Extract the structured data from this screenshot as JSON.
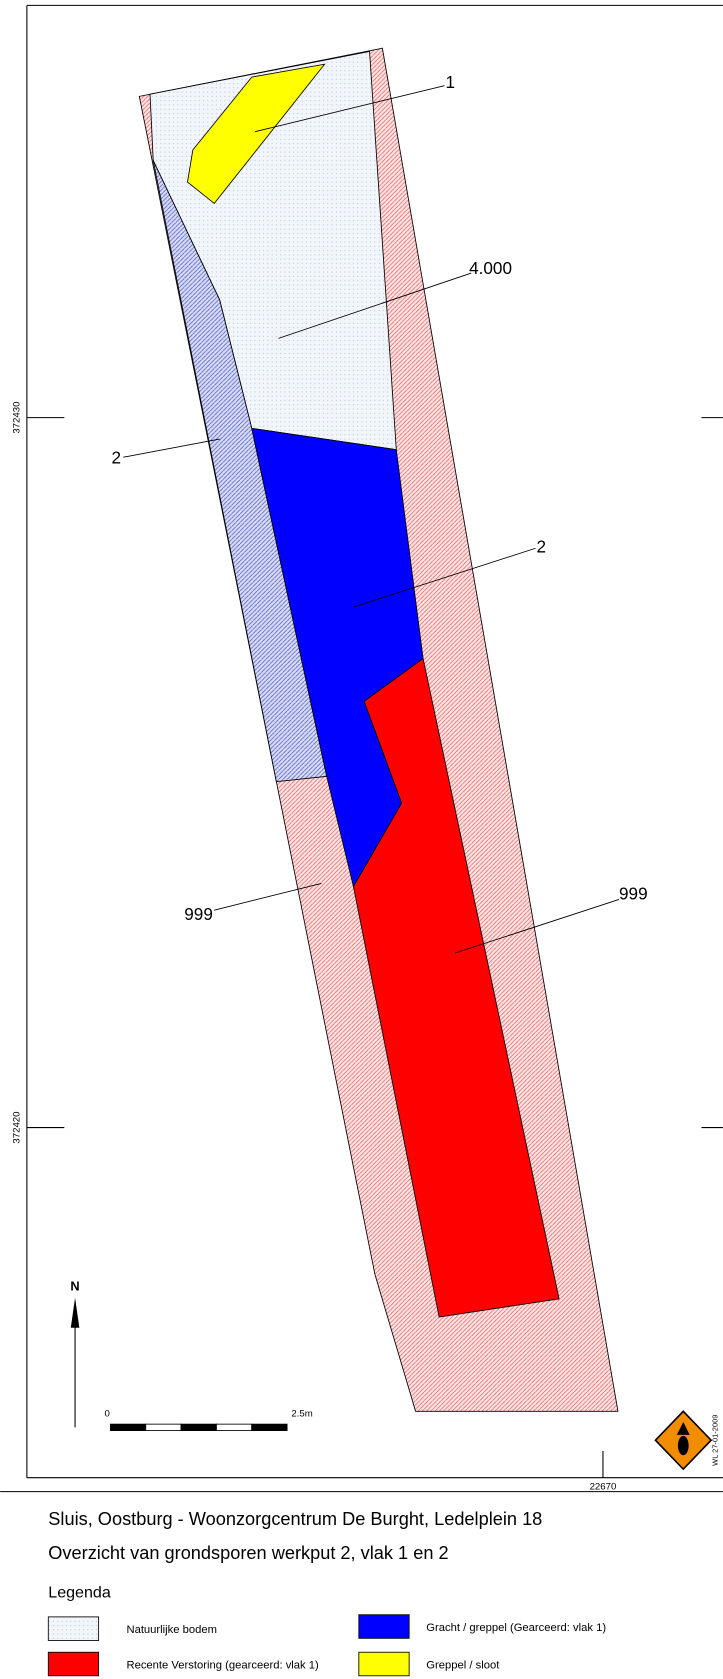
{
  "map": {
    "coordinates": {
      "y_upper": "372430",
      "y_lower": "372420",
      "x": "22670"
    },
    "features": [
      {
        "label": "1"
      },
      {
        "label": "4.000"
      },
      {
        "label": "2"
      },
      {
        "label": "2"
      },
      {
        "label": "999"
      },
      {
        "label": "999"
      }
    ],
    "north": "N",
    "scale": {
      "start": "0",
      "end": "2.5m"
    },
    "stamp": "WL 27-01-2009"
  },
  "footer": {
    "title": "Sluis, Oostburg - Woonzorgcentrum De Burght, Ledelplein 18",
    "subtitle": "Overzicht van grondsporen werkput 2, vlak 1 en 2",
    "legend_title": "Legenda",
    "legend": [
      "Natuurlijke bodem",
      "Gracht / greppel (Gearceerd: vlak 1)",
      "Recente Verstoring (gearceerd: vlak 1)",
      "Greppel / sloot"
    ]
  }
}
